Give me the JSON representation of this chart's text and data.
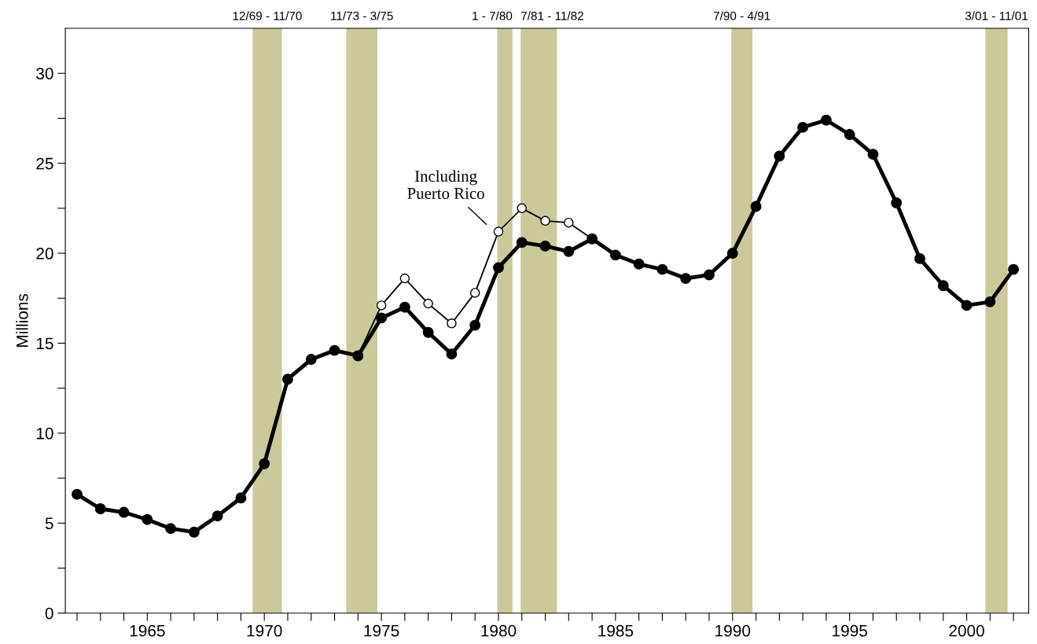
{
  "chart_data": {
    "type": "line",
    "ylabel": "Millions",
    "marker": "circle",
    "line_style": "solid",
    "grid": false,
    "x": [
      1962,
      1963,
      1964,
      1965,
      1966,
      1967,
      1968,
      1969,
      1970,
      1971,
      1972,
      1973,
      1974,
      1975,
      1976,
      1977,
      1978,
      1979,
      1980,
      1981,
      1982,
      1983,
      1984,
      1985,
      1986,
      1987,
      1988,
      1989,
      1990,
      1991,
      1992,
      1993,
      1994,
      1995,
      1996,
      1997,
      1998,
      1999,
      2000,
      2001,
      2002
    ],
    "series": [
      {
        "color": "#ffffff",
        "x": [
          1974,
          1975,
          1976,
          1977,
          1978,
          1979,
          1980,
          1981,
          1982,
          1983,
          1984
        ],
        "values": [
          14.3,
          17.1,
          18.6,
          17.2,
          16.1,
          17.8,
          21.2,
          22.5,
          21.8,
          21.7,
          20.8
        ]
      },
      {
        "color": "#000000",
        "values": [
          6.6,
          5.8,
          5.6,
          5.2,
          4.7,
          4.5,
          5.4,
          6.4,
          8.3,
          13.0,
          14.1,
          14.6,
          14.3,
          16.4,
          17.0,
          15.6,
          14.4,
          16.0,
          19.2,
          20.6,
          20.4,
          20.1,
          20.8,
          19.9,
          19.4,
          19.1,
          18.6,
          18.8,
          20.0,
          22.6,
          25.4,
          27.0,
          27.4,
          26.6,
          25.5,
          22.8,
          19.7,
          18.2,
          17.1,
          17.3,
          19.1
        ]
      }
    ],
    "xlim": [
      1961.5,
      2002.65
    ],
    "ylim": [
      0,
      32.5
    ],
    "xticks": [
      {
        "value": 1962,
        "label": null
      },
      {
        "value": 1963,
        "label": null
      },
      {
        "value": 1964,
        "label": null
      },
      1965,
      {
        "value": 1966,
        "label": null
      },
      {
        "value": 1967,
        "label": null
      },
      {
        "value": 1968,
        "label": null
      },
      {
        "value": 1969,
        "label": null
      },
      1970,
      {
        "value": 1971,
        "label": null
      },
      {
        "value": 1972,
        "label": null
      },
      {
        "value": 1973,
        "label": null
      },
      {
        "value": 1974,
        "label": null
      },
      1975,
      {
        "value": 1976,
        "label": null
      },
      {
        "value": 1977,
        "label": null
      },
      {
        "value": 1978,
        "label": null
      },
      {
        "value": 1979,
        "label": null
      },
      1980,
      {
        "value": 1981,
        "label": null
      },
      {
        "value": 1982,
        "label": null
      },
      {
        "value": 1983,
        "label": null
      },
      {
        "value": 1984,
        "label": null
      },
      1985,
      {
        "value": 1986,
        "label": null
      },
      {
        "value": 1987,
        "label": null
      },
      {
        "value": 1988,
        "label": null
      },
      {
        "value": 1989,
        "label": null
      },
      1990,
      {
        "value": 1991,
        "label": null
      },
      {
        "value": 1992,
        "label": null
      },
      {
        "value": 1993,
        "label": null
      },
      {
        "value": 1994,
        "label": null
      },
      1995,
      {
        "value": 1996,
        "label": null
      },
      {
        "value": 1997,
        "label": null
      },
      {
        "value": 1998,
        "label": null
      },
      {
        "value": 1999,
        "label": null
      },
      2000,
      {
        "value": 2001,
        "label": null
      },
      {
        "value": 2002,
        "label": null
      }
    ],
    "yticks": [
      0,
      {
        "value": 2.5,
        "label": null
      },
      5,
      {
        "value": 7.5,
        "label": null
      },
      10,
      {
        "value": 12.5,
        "label": null
      },
      15,
      {
        "value": 17.5,
        "label": null
      },
      20,
      {
        "value": 22.5,
        "label": null
      },
      25,
      {
        "value": 27.5,
        "label": null
      },
      30
    ],
    "bands": [
      {
        "axis": "x",
        "from": 1969.5,
        "to": 1970.75,
        "label": "12/69 - 11/70",
        "color": "#cbc99a"
      },
      {
        "axis": "x",
        "from": 1973.5,
        "to": 1974.83,
        "label": "11/73 - 3/75",
        "color": "#cbc99a"
      },
      {
        "axis": "x",
        "from": 1979.95,
        "to": 1980.6,
        "label": "1 - 7/80",
        "color": "#cbc99a"
      },
      {
        "axis": "x",
        "from": 1980.95,
        "to": 1982.5,
        "label": "7/81 - 11/82",
        "color": "#cbc99a"
      },
      {
        "axis": "x",
        "from": 1989.95,
        "to": 1990.85,
        "label": "7/90 - 4/91",
        "color": "#cbc99a"
      },
      {
        "axis": "x",
        "from": 2000.8,
        "to": 2001.75,
        "label": "3/01 - 11/01",
        "color": "#cbc99a"
      }
    ],
    "annotations": [
      "Including\nPuerto Rico"
    ]
  }
}
